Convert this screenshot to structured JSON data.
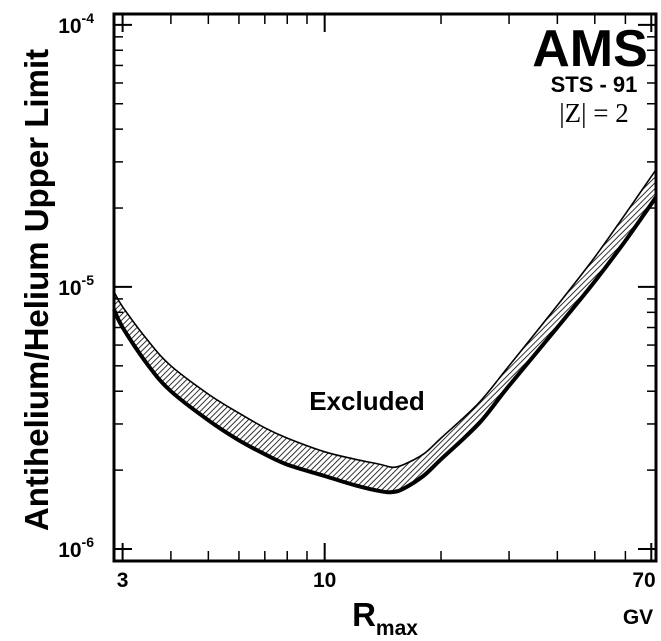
{
  "chart_data": {
    "type": "line",
    "ylabel": "Antihelium/Helium Upper Limit",
    "xlabel_main": "R",
    "xlabel_sub": "max",
    "x_unit": "GV",
    "xscale": "log",
    "yscale": "log",
    "xlim": [
      2.85,
      72
    ],
    "ylim": [
      9e-07,
      0.00011
    ],
    "x_ticks": [
      {
        "value": 3,
        "label": "3"
      },
      {
        "value": 10,
        "label": "10"
      },
      {
        "value": 70,
        "label": "70"
      }
    ],
    "y_ticks": [
      {
        "value": 1e-06,
        "base": "10",
        "exp": "-6"
      },
      {
        "value": 1e-05,
        "base": "10",
        "exp": "-5"
      },
      {
        "value": 0.0001,
        "base": "10",
        "exp": "-4"
      }
    ],
    "grid": false,
    "series": [
      {
        "x": [
          2.85,
          3,
          3.5,
          4,
          5,
          6,
          7,
          8,
          10,
          12,
          14,
          15,
          16,
          18,
          20,
          25,
          30,
          40,
          50,
          60,
          72
        ],
        "values": [
          8.2e-06,
          7e-06,
          5e-06,
          4e-06,
          3.1e-06,
          2.6e-06,
          2.3e-06,
          2.1e-06,
          1.9e-06,
          1.75e-06,
          1.66e-06,
          1.65e-06,
          1.7e-06,
          1.9e-06,
          2.2e-06,
          3e-06,
          4.2e-06,
          7e-06,
          1.05e-05,
          1.5e-05,
          2.2e-05
        ]
      },
      {
        "x": [
          2.85,
          3,
          3.5,
          4,
          5,
          6,
          7,
          8,
          10,
          12,
          14,
          15,
          16,
          18,
          20,
          25,
          30,
          40,
          50,
          60,
          72
        ],
        "values": [
          9.6e-06,
          8.4e-06,
          6.2e-06,
          5e-06,
          3.9e-06,
          3.3e-06,
          2.9e-06,
          2.65e-06,
          2.35e-06,
          2.2e-06,
          2.1e-06,
          2.05e-06,
          2.1e-06,
          2.3e-06,
          2.65e-06,
          3.6e-06,
          5e-06,
          8.5e-06,
          1.3e-05,
          1.9e-05,
          2.8e-05
        ]
      }
    ],
    "annotations": {
      "experiment": "AMS",
      "mission": "STS - 91",
      "charge": "|Z| = 2",
      "region": "Excluded"
    }
  }
}
